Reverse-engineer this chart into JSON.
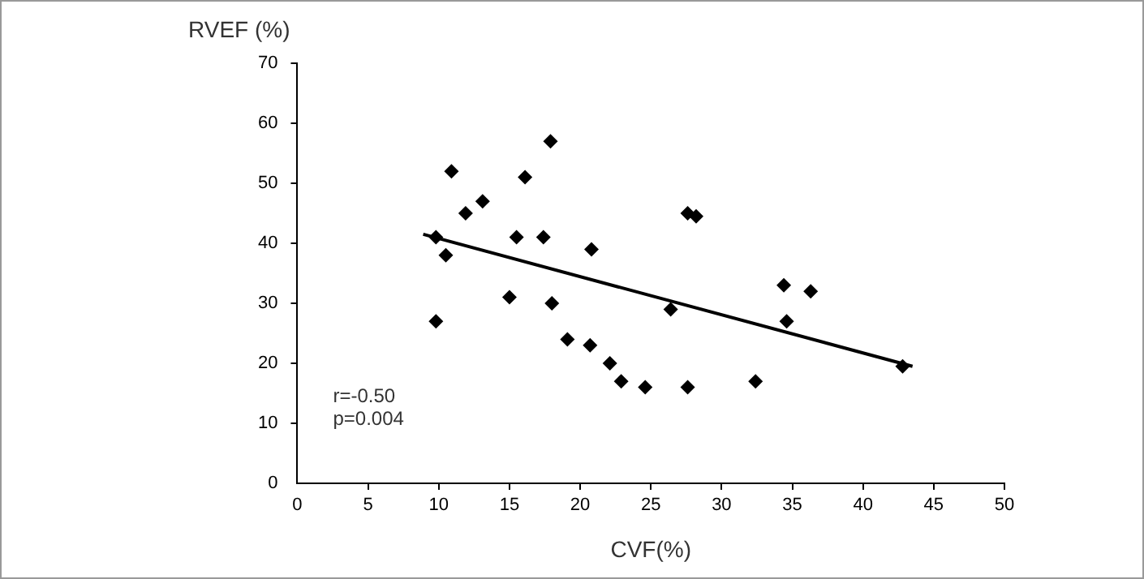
{
  "chart_data": {
    "type": "scatter",
    "xlabel": "CVF(%)",
    "ylabel": "RVEF (%)",
    "annotations": [
      "r=-0.50",
      "p=0.004"
    ],
    "xlim": [
      0,
      50
    ],
    "xticks": [
      0,
      5,
      10,
      15,
      20,
      25,
      30,
      35,
      40,
      45,
      50
    ],
    "ylim": [
      0,
      70
    ],
    "yticks": [
      0,
      10,
      20,
      30,
      40,
      50,
      60,
      70
    ],
    "grid": false,
    "legend": false,
    "marker": "diamond",
    "series": [
      {
        "type": "scatter",
        "color": "#000000",
        "x": [
          9.8,
          10.5,
          9.8,
          10.9,
          11.9,
          13.1,
          15.0,
          15.5,
          16.1,
          17.4,
          17.9,
          18.0,
          19.1,
          20.8,
          20.7,
          22.1,
          22.9,
          24.6,
          26.4,
          27.6,
          28.2,
          27.6,
          32.4,
          34.4,
          34.6,
          36.3,
          42.8
        ],
        "values": [
          41,
          38,
          27,
          52,
          45,
          47,
          31,
          41,
          51,
          41,
          57,
          30,
          24,
          39,
          23,
          20,
          17,
          16,
          29,
          45,
          44.5,
          16,
          17,
          33,
          27,
          32,
          19.5
        ]
      },
      {
        "type": "line",
        "marker": "none",
        "color": "#000000",
        "x": [
          8.9,
          43.5
        ],
        "values": [
          41.5,
          19.5
        ]
      }
    ]
  }
}
